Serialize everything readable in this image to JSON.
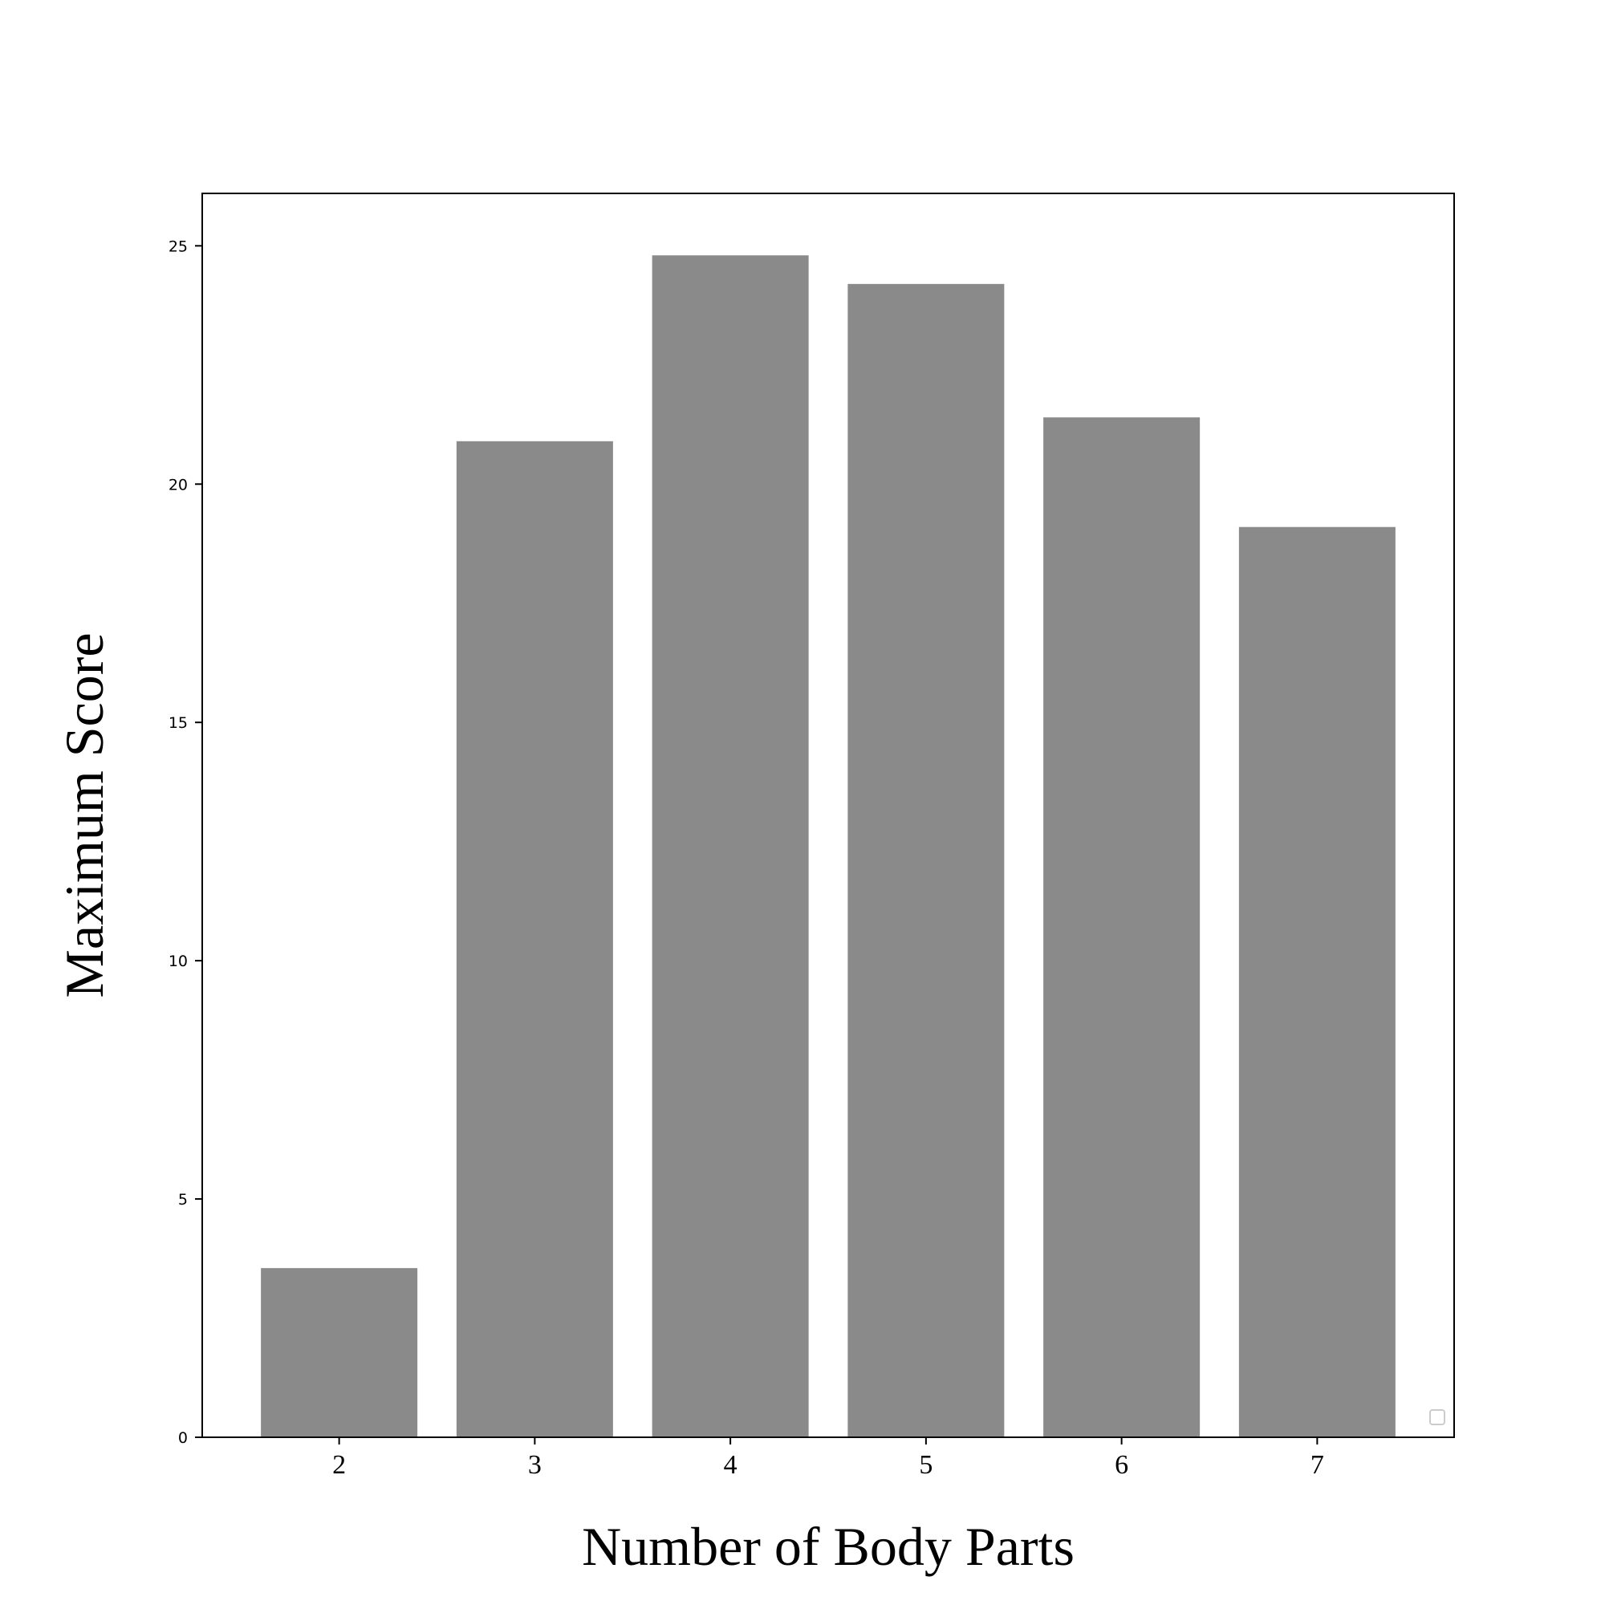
{
  "chart_data": {
    "type": "bar",
    "title": "",
    "xlabel": "Number of Body Parts",
    "ylabel": "Maximum Score",
    "categories": [
      "2",
      "3",
      "4",
      "5",
      "6",
      "7"
    ],
    "values": [
      3.55,
      20.9,
      24.8,
      24.2,
      21.4,
      19.1
    ],
    "ylim": [
      0,
      26.1
    ],
    "yticks": [
      0,
      5,
      10,
      15,
      20,
      25
    ],
    "bar_color": "#8a8a8a",
    "grid": false,
    "legend": "lower-right (empty)"
  }
}
